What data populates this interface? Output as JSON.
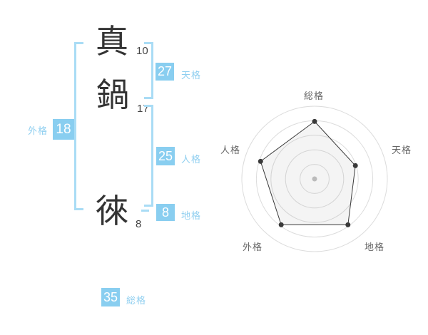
{
  "page": {
    "background": "#ffffff"
  },
  "name_panel": {
    "characters": [
      {
        "char": "真",
        "strokes": "10"
      },
      {
        "char": "鍋",
        "strokes": "17"
      },
      {
        "char": "徠",
        "strokes": "8"
      }
    ],
    "badges": {
      "tenkaku": {
        "value": "27",
        "label": "天格"
      },
      "jinkaku": {
        "value": "25",
        "label": "人格"
      },
      "chikaku": {
        "value": "8",
        "label": "地格"
      },
      "gaikaku": {
        "value": "18",
        "label": "外格"
      },
      "soukaku": {
        "value": "35",
        "label": "総格"
      }
    },
    "colors": {
      "badge_bg": "#89cef0",
      "bracket": "#a9dcf5",
      "label_text": "#8fcff0"
    }
  },
  "chart_data": {
    "type": "radar",
    "axes": [
      "総格",
      "天格",
      "地格",
      "外格",
      "人格"
    ],
    "values": [
      79,
      59,
      78,
      78,
      78
    ],
    "max": 100,
    "rings": 5,
    "center_dot": true,
    "legend": "none",
    "colors": {
      "ring": "#dcdcdc",
      "polygon_stroke": "#3a3a3a",
      "polygon_fill": "rgba(130,130,130,0.09)",
      "point": "#3a3a3a",
      "center_dot": "#bbbbbb",
      "label": "#666666"
    }
  }
}
